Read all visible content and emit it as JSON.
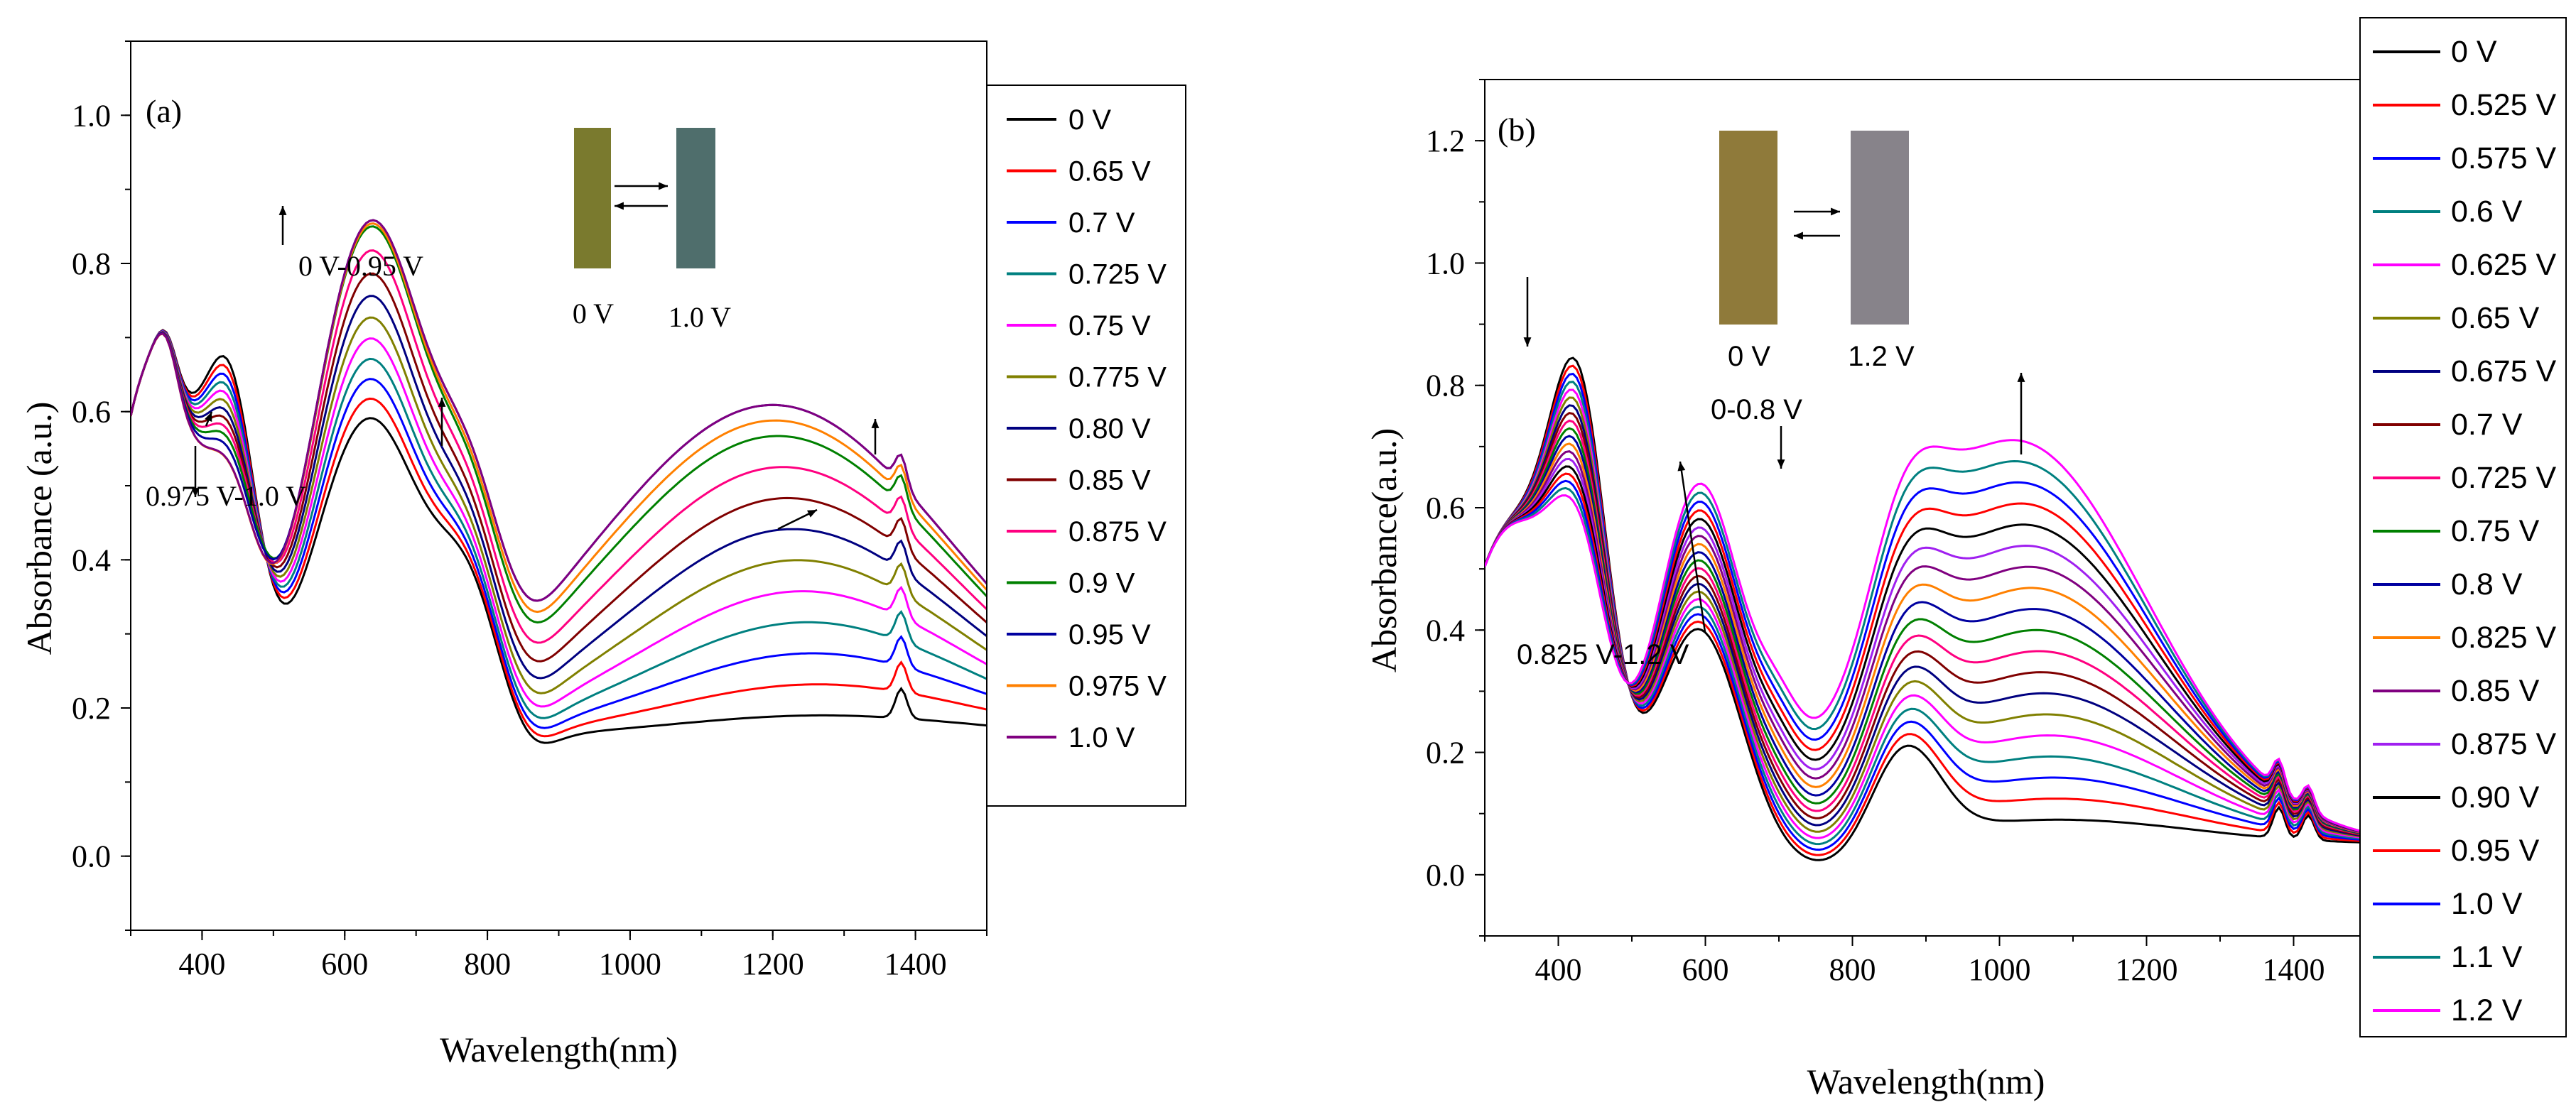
{
  "chart_data": [
    {
      "panel": "(a)",
      "type": "line",
      "xlabel": "Wavelength(nm)",
      "ylabel": "Absorbance (a.u.)",
      "xlim": [
        300,
        1500
      ],
      "ylim": [
        -0.1,
        1.1
      ],
      "xticks": [
        400,
        600,
        800,
        1000,
        1200,
        1400
      ],
      "yticks": [
        0.0,
        0.2,
        0.4,
        0.6,
        0.8,
        1.0
      ],
      "ytick_labels": [
        "0.0",
        "0.2",
        "0.4",
        "0.6",
        "0.8",
        "1.0"
      ],
      "legend": {
        "placement": "right"
      },
      "series": [
        {
          "name": "0 V",
          "color": "#000000"
        },
        {
          "name": "0.65 V",
          "color": "#ff0000"
        },
        {
          "name": "0.7 V",
          "color": "#0000ff"
        },
        {
          "name": "0.725 V",
          "color": "#008080"
        },
        {
          "name": "0.75 V",
          "color": "#ff00ff"
        },
        {
          "name": "0.775 V",
          "color": "#808000"
        },
        {
          "name": "0.80 V",
          "color": "#000080"
        },
        {
          "name": "0.85 V",
          "color": "#800000"
        },
        {
          "name": "0.875 V",
          "color": "#ff0080"
        },
        {
          "name": "0.9 V",
          "color": "#008000"
        },
        {
          "name": "0.95 V",
          "color": "#0000a0"
        },
        {
          "name": "0.975 V",
          "color": "#ff8000"
        },
        {
          "name": "1.0 V",
          "color": "#800080"
        }
      ],
      "annotations": {
        "up_range": "0 V-0.95 V",
        "down_range": "0.975 V-1.0 V",
        "inset_left": "0 V",
        "inset_right": "1.0 V",
        "inset_colors": [
          "#7a7a2e",
          "#4f6e6c"
        ]
      }
    },
    {
      "panel": "(b)",
      "type": "line",
      "xlabel": "Wavelength(nm)",
      "ylabel": "Absorbance(a.u.)",
      "xlim": [
        300,
        1500
      ],
      "ylim": [
        -0.1,
        1.3
      ],
      "xticks": [
        400,
        600,
        800,
        1000,
        1200,
        1400
      ],
      "yticks": [
        0.0,
        0.2,
        0.4,
        0.6,
        0.8,
        1.0,
        1.2
      ],
      "ytick_labels": [
        "0.0",
        "0.2",
        "0.4",
        "0.6",
        "0.8",
        "1.0",
        "1.2"
      ],
      "legend": {
        "placement": "right"
      },
      "series": [
        {
          "name": "0 V",
          "color": "#000000"
        },
        {
          "name": "0.525 V",
          "color": "#ff0000"
        },
        {
          "name": "0.575 V",
          "color": "#0000ff"
        },
        {
          "name": "0.6 V",
          "color": "#008080"
        },
        {
          "name": "0.625 V",
          "color": "#ff00ff"
        },
        {
          "name": "0.65 V",
          "color": "#808000"
        },
        {
          "name": "0.675 V",
          "color": "#000080"
        },
        {
          "name": "0.7 V",
          "color": "#800000"
        },
        {
          "name": "0.725 V",
          "color": "#ff0080"
        },
        {
          "name": "0.75 V",
          "color": "#008000"
        },
        {
          "name": "0.8 V",
          "color": "#0000a0"
        },
        {
          "name": "0.825 V",
          "color": "#ff8000"
        },
        {
          "name": "0.85 V",
          "color": "#800080"
        },
        {
          "name": "0.875 V",
          "color": "#a020f0"
        },
        {
          "name": "0.90 V",
          "color": "#000000"
        },
        {
          "name": "0.95 V",
          "color": "#ff0000"
        },
        {
          "name": "1.0 V",
          "color": "#0000ff"
        },
        {
          "name": "1.1 V",
          "color": "#008080"
        },
        {
          "name": "1.2 V",
          "color": "#ff00ff"
        }
      ],
      "annotations": {
        "up_range": "0-0.8 V",
        "down_range": "0.825 V-1.2 V",
        "inset_left": "0 V",
        "inset_right": "1.2 V",
        "inset_colors": [
          "#8f7a3a",
          "#87838a"
        ]
      }
    }
  ]
}
